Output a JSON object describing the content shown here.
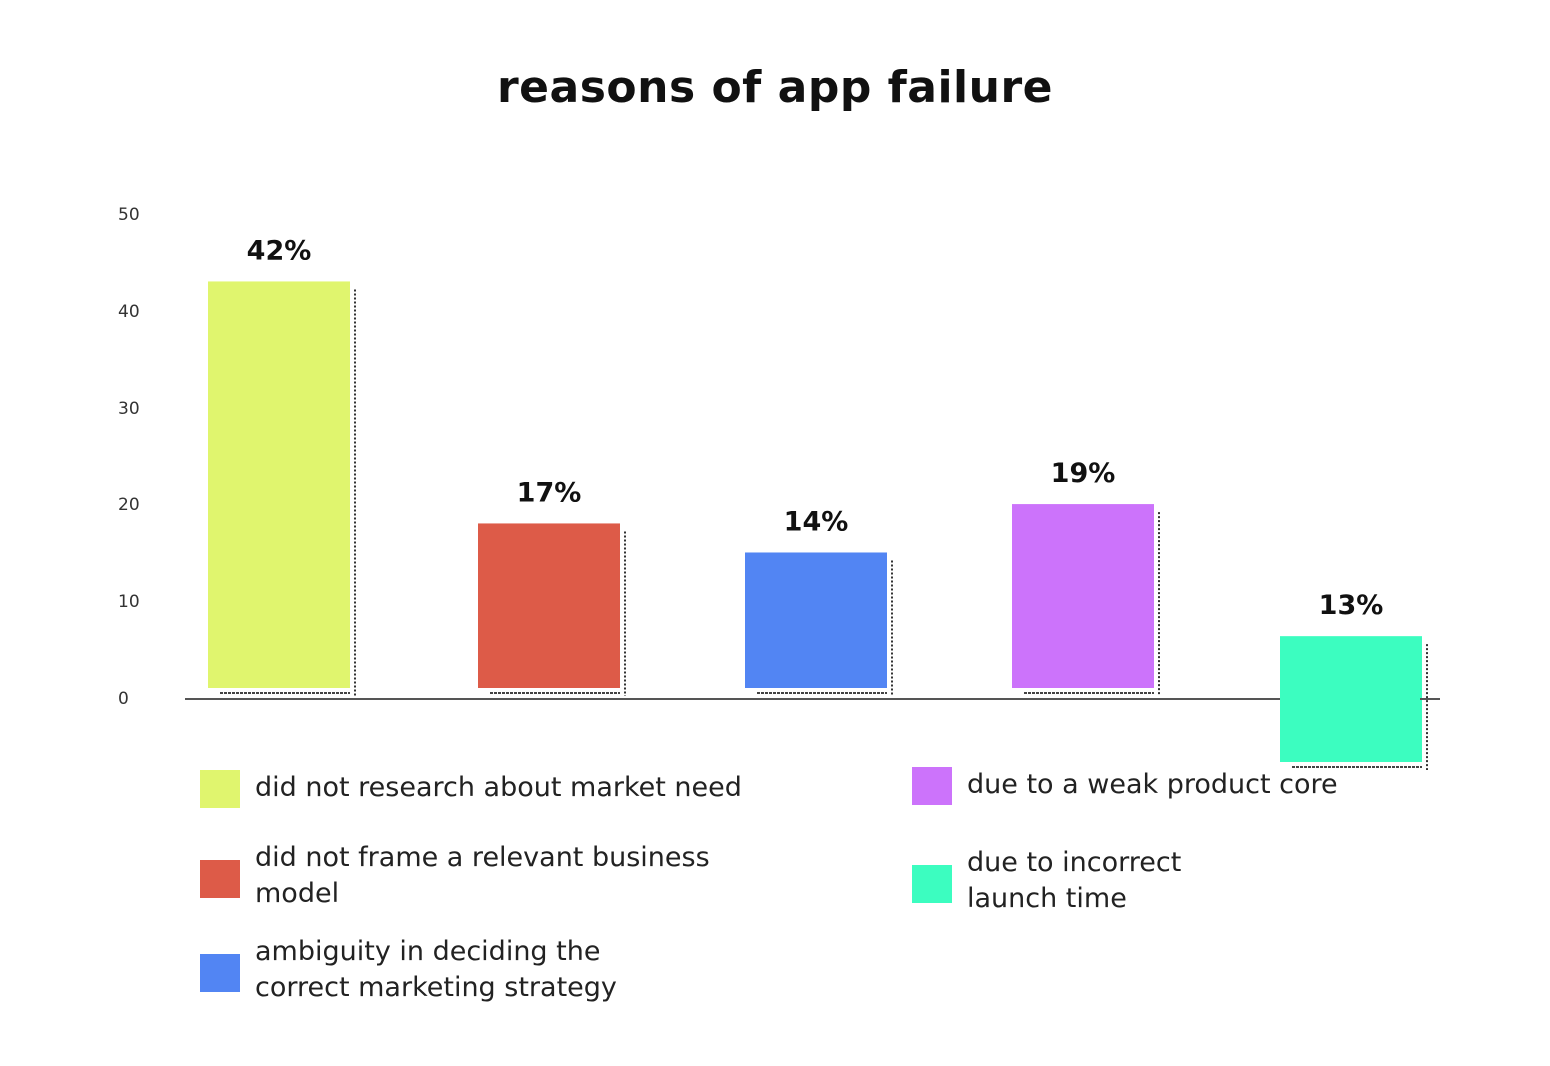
{
  "chart_data": {
    "type": "bar",
    "title": "reasons of app failure",
    "xlabel": "",
    "ylabel": "",
    "ylim": [
      0,
      50
    ],
    "yticks": [
      "0",
      "10",
      "20",
      "30",
      "40",
      "50"
    ],
    "categories": [
      "did not research about market need",
      "did not frame a relevant business model",
      "ambiguity in deciding the correct marketing strategy",
      "due to a weak product core",
      "due to incorrect launch time"
    ],
    "values": [
      42,
      17,
      14,
      19,
      13
    ],
    "data_labels": [
      "42%",
      "17%",
      "14%",
      "19%",
      "13%"
    ],
    "colors": [
      "#e0f56e",
      "#dd5b48",
      "#5285f3",
      "#cc73fb",
      "#3cfdc0"
    ],
    "legend_placement": "bottom",
    "grid": false
  }
}
